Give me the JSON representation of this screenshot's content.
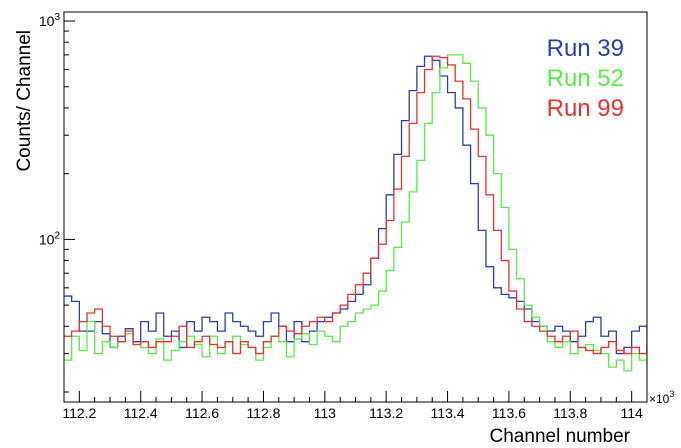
{
  "chart_data": {
    "type": "step-histogram",
    "title": "",
    "xlabel": "Channel number",
    "ylabel": "Counts/ Channel",
    "x_multiplier_label": "×10",
    "x_multiplier_exponent": "3",
    "xscale": "linear",
    "yscale": "log",
    "xlim": [
      112.15,
      114.05
    ],
    "ylim": [
      18,
      1100
    ],
    "x_ticks": [
      "112.2",
      "112.4",
      "112.6",
      "112.8",
      "113",
      "113.2",
      "113.4",
      "113.6",
      "113.8",
      "114"
    ],
    "y_tick_labels": [
      {
        "base": "10",
        "exp": "2",
        "value": 100
      },
      {
        "base": "10",
        "exp": "3",
        "value": 1000
      }
    ],
    "grid": false,
    "legend_position": "top-right",
    "bin_start": 112.15,
    "bin_width": 0.025,
    "series": [
      {
        "name": "Run 39",
        "color": "#2b3eaa",
        "values": [
          55,
          52,
          38,
          38,
          42,
          37,
          32,
          36,
          39,
          34,
          42,
          38,
          46,
          36,
          38,
          32,
          42,
          38,
          44,
          42,
          38,
          46,
          42,
          40,
          38,
          36,
          42,
          46,
          40,
          34,
          42,
          34,
          38,
          42,
          44,
          46,
          48,
          52,
          56,
          62,
          82,
          112,
          160,
          245,
          350,
          480,
          620,
          690,
          660,
          560,
          470,
          400,
          270,
          180,
          110,
          75,
          60,
          56,
          54,
          52,
          48,
          42,
          40,
          38,
          40,
          38,
          34,
          36,
          42,
          44,
          36,
          38,
          30,
          32,
          38,
          40,
          30,
          32,
          34,
          36,
          34,
          38,
          34,
          36,
          40,
          36,
          34,
          34,
          42,
          38
        ]
      },
      {
        "name": "Run 52",
        "color": "#55ee44",
        "values": [
          28,
          36,
          31,
          42,
          30,
          34,
          32,
          34,
          37,
          33,
          32,
          30,
          35,
          28,
          31,
          34,
          36,
          33,
          29,
          36,
          30,
          34,
          36,
          33,
          32,
          28,
          32,
          36,
          34,
          29,
          35,
          37,
          33,
          38,
          36,
          34,
          40,
          42,
          46,
          48,
          50,
          58,
          72,
          92,
          120,
          165,
          230,
          340,
          470,
          610,
          700,
          700,
          640,
          530,
          400,
          300,
          200,
          140,
          90,
          66,
          50,
          44,
          40,
          34,
          32,
          34,
          30,
          32,
          33,
          31,
          30,
          26,
          28,
          25,
          30,
          28,
          26,
          30,
          28,
          31,
          27,
          30,
          28,
          32,
          30,
          33,
          31,
          28,
          32,
          28
        ]
      },
      {
        "name": "Run 99",
        "color": "#e8312f",
        "values": [
          36,
          38,
          42,
          46,
          48,
          40,
          36,
          34,
          38,
          33,
          34,
          32,
          34,
          34,
          36,
          40,
          32,
          34,
          36,
          33,
          32,
          34,
          30,
          34,
          32,
          30,
          34,
          36,
          40,
          38,
          37,
          40,
          42,
          44,
          42,
          46,
          50,
          56,
          62,
          70,
          82,
          95,
          122,
          170,
          240,
          340,
          470,
          600,
          690,
          680,
          630,
          530,
          440,
          320,
          240,
          160,
          110,
          80,
          58,
          48,
          42,
          40,
          38,
          36,
          34,
          36,
          38,
          32,
          31,
          30,
          32,
          34,
          31,
          30,
          32,
          30,
          32,
          33,
          30,
          29,
          32,
          34,
          32,
          34,
          30,
          33,
          34,
          32,
          30,
          32
        ]
      }
    ]
  }
}
